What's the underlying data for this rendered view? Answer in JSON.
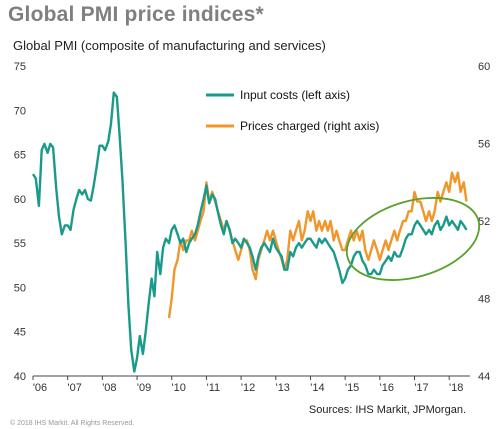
{
  "title": "Global PMI price indices*",
  "subtitle": "Global PMI (composite of manufacturing and services)",
  "source": "Sources: IHS Markit, JPMorgan.",
  "copyright": "© 2018 IHS Markit. All Rights Reserved.",
  "colors": {
    "input": "#1a9a8a",
    "prices": "#f0962a",
    "ellipse": "#5aa02c"
  },
  "chart_data": {
    "type": "line",
    "x_ticks": [
      "'06",
      "'07",
      "'08",
      "'09",
      "'10",
      "'11",
      "'12",
      "'13",
      "'14",
      "'15",
      "'16",
      "'17",
      "'18"
    ],
    "xlim": [
      2006,
      2018.6
    ],
    "y_left": {
      "ticks": [
        40,
        45,
        50,
        55,
        60,
        65,
        70,
        75
      ],
      "ylim": [
        40,
        75
      ]
    },
    "y_right": {
      "ticks": [
        44,
        48,
        52,
        56,
        60
      ],
      "ylim": [
        44,
        60
      ]
    },
    "series": [
      {
        "name": "Input costs (left axis)",
        "axis": "left",
        "points": [
          [
            2006.0,
            62.8
          ],
          [
            2006.08,
            62.3
          ],
          [
            2006.17,
            59.2
          ],
          [
            2006.25,
            65.5
          ],
          [
            2006.33,
            66.2
          ],
          [
            2006.42,
            65.2
          ],
          [
            2006.5,
            66.2
          ],
          [
            2006.58,
            65.8
          ],
          [
            2006.67,
            61.2
          ],
          [
            2006.75,
            58.0
          ],
          [
            2006.83,
            56.0
          ],
          [
            2006.92,
            57.0
          ],
          [
            2007.0,
            57.0
          ],
          [
            2007.08,
            56.5
          ],
          [
            2007.17,
            58.8
          ],
          [
            2007.25,
            60.0
          ],
          [
            2007.33,
            61.0
          ],
          [
            2007.42,
            60.5
          ],
          [
            2007.5,
            61.0
          ],
          [
            2007.58,
            60.0
          ],
          [
            2007.67,
            59.8
          ],
          [
            2007.75,
            61.5
          ],
          [
            2007.83,
            63.5
          ],
          [
            2007.92,
            66.0
          ],
          [
            2008.0,
            66.0
          ],
          [
            2008.08,
            65.5
          ],
          [
            2008.17,
            66.5
          ],
          [
            2008.25,
            68.5
          ],
          [
            2008.33,
            72.0
          ],
          [
            2008.42,
            71.5
          ],
          [
            2008.5,
            67.0
          ],
          [
            2008.58,
            62.0
          ],
          [
            2008.67,
            55.0
          ],
          [
            2008.75,
            48.0
          ],
          [
            2008.83,
            43.0
          ],
          [
            2008.92,
            40.5
          ],
          [
            2009.0,
            42.0
          ],
          [
            2009.08,
            44.5
          ],
          [
            2009.17,
            42.5
          ],
          [
            2009.25,
            45.0
          ],
          [
            2009.33,
            48.0
          ],
          [
            2009.42,
            51.0
          ],
          [
            2009.5,
            49.0
          ],
          [
            2009.58,
            54.0
          ],
          [
            2009.67,
            51.5
          ],
          [
            2009.75,
            54.5
          ],
          [
            2009.83,
            55.5
          ],
          [
            2009.92,
            55.0
          ],
          [
            2010.0,
            56.5
          ],
          [
            2010.08,
            57.0
          ],
          [
            2010.17,
            56.0
          ],
          [
            2010.25,
            55.0
          ],
          [
            2010.33,
            55.5
          ],
          [
            2010.42,
            54.0
          ],
          [
            2010.5,
            55.0
          ],
          [
            2010.58,
            55.5
          ],
          [
            2010.67,
            56.0
          ],
          [
            2010.75,
            57.0
          ],
          [
            2010.83,
            58.5
          ],
          [
            2010.92,
            60.0
          ],
          [
            2011.0,
            61.5
          ],
          [
            2011.08,
            59.5
          ],
          [
            2011.17,
            60.5
          ],
          [
            2011.25,
            60.0
          ],
          [
            2011.33,
            58.5
          ],
          [
            2011.42,
            57.0
          ],
          [
            2011.5,
            56.0
          ],
          [
            2011.58,
            57.5
          ],
          [
            2011.67,
            56.5
          ],
          [
            2011.75,
            55.0
          ],
          [
            2011.83,
            55.5
          ],
          [
            2011.92,
            55.0
          ],
          [
            2012.0,
            54.5
          ],
          [
            2012.08,
            55.5
          ],
          [
            2012.17,
            55.0
          ],
          [
            2012.25,
            54.5
          ],
          [
            2012.33,
            53.5
          ],
          [
            2012.42,
            52.0
          ],
          [
            2012.5,
            53.5
          ],
          [
            2012.58,
            54.5
          ],
          [
            2012.67,
            55.0
          ],
          [
            2012.75,
            54.5
          ],
          [
            2012.83,
            54.0
          ],
          [
            2012.92,
            55.5
          ],
          [
            2013.0,
            54.5
          ],
          [
            2013.08,
            54.0
          ],
          [
            2013.17,
            53.5
          ],
          [
            2013.25,
            52.0
          ],
          [
            2013.33,
            52.0
          ],
          [
            2013.42,
            54.0
          ],
          [
            2013.5,
            53.5
          ],
          [
            2013.58,
            54.5
          ],
          [
            2013.67,
            55.0
          ],
          [
            2013.75,
            54.5
          ],
          [
            2013.83,
            55.0
          ],
          [
            2013.92,
            55.5
          ],
          [
            2014.0,
            55.5
          ],
          [
            2014.08,
            55.0
          ],
          [
            2014.17,
            54.5
          ],
          [
            2014.25,
            55.5
          ],
          [
            2014.33,
            55.0
          ],
          [
            2014.42,
            55.5
          ],
          [
            2014.5,
            55.0
          ],
          [
            2014.58,
            54.5
          ],
          [
            2014.67,
            54.0
          ],
          [
            2014.75,
            53.0
          ],
          [
            2014.83,
            52.0
          ],
          [
            2014.92,
            50.5
          ],
          [
            2015.0,
            51.0
          ],
          [
            2015.08,
            52.0
          ],
          [
            2015.17,
            52.5
          ],
          [
            2015.25,
            53.5
          ],
          [
            2015.33,
            54.0
          ],
          [
            2015.42,
            54.0
          ],
          [
            2015.5,
            53.0
          ],
          [
            2015.58,
            52.5
          ],
          [
            2015.67,
            51.5
          ],
          [
            2015.75,
            51.5
          ],
          [
            2015.83,
            52.0
          ],
          [
            2015.92,
            51.5
          ],
          [
            2016.0,
            51.5
          ],
          [
            2016.08,
            52.5
          ],
          [
            2016.17,
            53.0
          ],
          [
            2016.25,
            53.5
          ],
          [
            2016.33,
            53.0
          ],
          [
            2016.42,
            54.0
          ],
          [
            2016.5,
            53.5
          ],
          [
            2016.58,
            53.5
          ],
          [
            2016.67,
            54.5
          ],
          [
            2016.75,
            55.5
          ],
          [
            2016.83,
            56.0
          ],
          [
            2016.92,
            56.0
          ],
          [
            2017.0,
            57.0
          ],
          [
            2017.08,
            57.5
          ],
          [
            2017.17,
            57.0
          ],
          [
            2017.25,
            56.5
          ],
          [
            2017.33,
            56.0
          ],
          [
            2017.42,
            56.5
          ],
          [
            2017.5,
            56.0
          ],
          [
            2017.58,
            57.0
          ],
          [
            2017.67,
            57.5
          ],
          [
            2017.75,
            56.5
          ],
          [
            2017.83,
            57.0
          ],
          [
            2017.92,
            58.0
          ],
          [
            2018.0,
            57.0
          ],
          [
            2018.08,
            57.5
          ],
          [
            2018.17,
            57.0
          ],
          [
            2018.25,
            56.5
          ],
          [
            2018.33,
            57.5
          ],
          [
            2018.42,
            57.0
          ],
          [
            2018.5,
            56.5
          ]
        ]
      },
      {
        "name": "Prices charged (right axis)",
        "axis": "right",
        "points": [
          [
            2009.92,
            47.0
          ],
          [
            2010.0,
            48.0
          ],
          [
            2010.08,
            49.5
          ],
          [
            2010.17,
            50.0
          ],
          [
            2010.25,
            51.0
          ],
          [
            2010.33,
            50.5
          ],
          [
            2010.42,
            51.0
          ],
          [
            2010.5,
            51.0
          ],
          [
            2010.58,
            51.5
          ],
          [
            2010.67,
            51.0
          ],
          [
            2010.75,
            51.5
          ],
          [
            2010.83,
            52.0
          ],
          [
            2010.92,
            52.5
          ],
          [
            2011.0,
            54.0
          ],
          [
            2011.08,
            53.0
          ],
          [
            2011.17,
            53.5
          ],
          [
            2011.25,
            53.0
          ],
          [
            2011.33,
            52.5
          ],
          [
            2011.42,
            52.0
          ],
          [
            2011.5,
            51.5
          ],
          [
            2011.58,
            52.0
          ],
          [
            2011.67,
            51.5
          ],
          [
            2011.75,
            51.0
          ],
          [
            2011.83,
            50.5
          ],
          [
            2011.92,
            50.0
          ],
          [
            2012.0,
            50.5
          ],
          [
            2012.08,
            51.0
          ],
          [
            2012.17,
            51.0
          ],
          [
            2012.25,
            50.5
          ],
          [
            2012.33,
            49.5
          ],
          [
            2012.42,
            49.0
          ],
          [
            2012.5,
            50.0
          ],
          [
            2012.58,
            50.5
          ],
          [
            2012.67,
            51.0
          ],
          [
            2012.75,
            51.5
          ],
          [
            2012.83,
            51.0
          ],
          [
            2012.92,
            51.5
          ],
          [
            2013.0,
            51.0
          ],
          [
            2013.08,
            50.5
          ],
          [
            2013.17,
            50.0
          ],
          [
            2013.25,
            49.5
          ],
          [
            2013.33,
            50.0
          ],
          [
            2013.42,
            51.5
          ],
          [
            2013.5,
            51.0
          ],
          [
            2013.58,
            51.5
          ],
          [
            2013.67,
            52.0
          ],
          [
            2013.75,
            51.0
          ],
          [
            2013.83,
            51.5
          ],
          [
            2013.92,
            52.5
          ],
          [
            2014.0,
            52.0
          ],
          [
            2014.08,
            52.5
          ],
          [
            2014.17,
            51.5
          ],
          [
            2014.25,
            52.0
          ],
          [
            2014.33,
            51.5
          ],
          [
            2014.42,
            52.0
          ],
          [
            2014.5,
            51.5
          ],
          [
            2014.58,
            52.0
          ],
          [
            2014.67,
            51.0
          ],
          [
            2014.75,
            51.5
          ],
          [
            2014.83,
            51.0
          ],
          [
            2014.92,
            50.5
          ],
          [
            2015.0,
            50.5
          ],
          [
            2015.08,
            51.0
          ],
          [
            2015.17,
            51.5
          ],
          [
            2015.25,
            51.0
          ],
          [
            2015.33,
            51.5
          ],
          [
            2015.42,
            51.0
          ],
          [
            2015.5,
            51.5
          ],
          [
            2015.58,
            50.5
          ],
          [
            2015.67,
            50.0
          ],
          [
            2015.75,
            50.5
          ],
          [
            2015.83,
            51.0
          ],
          [
            2015.92,
            50.5
          ],
          [
            2016.0,
            50.0
          ],
          [
            2016.08,
            50.5
          ],
          [
            2016.17,
            51.0
          ],
          [
            2016.25,
            50.5
          ],
          [
            2016.33,
            51.0
          ],
          [
            2016.42,
            51.5
          ],
          [
            2016.5,
            51.0
          ],
          [
            2016.58,
            51.5
          ],
          [
            2016.67,
            52.0
          ],
          [
            2016.75,
            52.0
          ],
          [
            2016.83,
            52.5
          ],
          [
            2016.92,
            52.5
          ],
          [
            2017.0,
            53.5
          ],
          [
            2017.08,
            53.0
          ],
          [
            2017.17,
            53.0
          ],
          [
            2017.25,
            52.5
          ],
          [
            2017.33,
            52.0
          ],
          [
            2017.42,
            52.5
          ],
          [
            2017.5,
            52.0
          ],
          [
            2017.58,
            52.5
          ],
          [
            2017.67,
            53.5
          ],
          [
            2017.75,
            53.0
          ],
          [
            2017.83,
            53.5
          ],
          [
            2017.92,
            54.0
          ],
          [
            2018.0,
            53.5
          ],
          [
            2018.08,
            54.5
          ],
          [
            2018.17,
            54.0
          ],
          [
            2018.25,
            54.5
          ],
          [
            2018.33,
            53.5
          ],
          [
            2018.42,
            54.0
          ],
          [
            2018.5,
            53.0
          ]
        ]
      }
    ]
  }
}
